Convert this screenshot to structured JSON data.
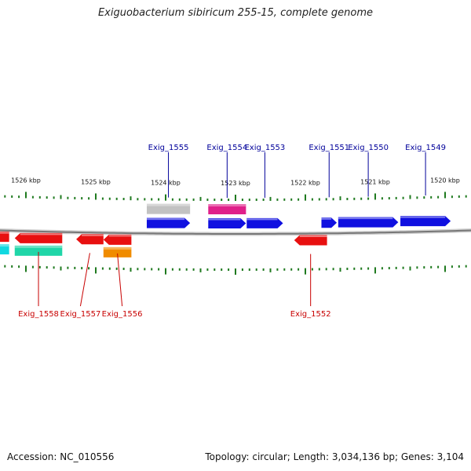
{
  "title": "Exiguobacterium sibiricum 255-15, complete genome",
  "footer": {
    "accession": "Accession: NC_010556",
    "summary": "Topology: circular; Length: 3,034,136 bp; Genes: 3,104"
  },
  "colors": {
    "forward_label": "#00009a",
    "reverse_label": "#c80000",
    "tick": "#1f7a1f",
    "backbone": "#777777"
  },
  "scale": {
    "major_ticks": [
      {
        "kbp": 1526,
        "label": "1526 kbp"
      },
      {
        "kbp": 1525,
        "label": "1525 kbp"
      },
      {
        "kbp": 1524,
        "label": "1524 kbp"
      },
      {
        "kbp": 1523,
        "label": "1523 kbp"
      },
      {
        "kbp": 1522,
        "label": "1522 kbp"
      },
      {
        "kbp": 1521,
        "label": "1521 kbp"
      },
      {
        "kbp": 1520,
        "label": "1520 kbp"
      }
    ]
  },
  "features": [
    {
      "name": "Exig_1555",
      "strand": "+",
      "start_kbp": 1524.27,
      "end_kbp": 1523.65,
      "color": "#1010e0",
      "labeled": true
    },
    {
      "name": "Exig_1554",
      "strand": "+",
      "start_kbp": 1523.39,
      "end_kbp": 1522.85,
      "color": "#1010e0",
      "labeled": true
    },
    {
      "name": "Exig_1553",
      "strand": "+",
      "start_kbp": 1522.84,
      "end_kbp": 1522.32,
      "color": "#1010e0",
      "labeled": true
    },
    {
      "name": "Exig_1551",
      "strand": "+",
      "start_kbp": 1521.77,
      "end_kbp": 1521.55,
      "color": "#1010e0",
      "labeled": true
    },
    {
      "name": "Exig_1550",
      "strand": "+",
      "start_kbp": 1521.53,
      "end_kbp": 1520.67,
      "color": "#1010e0",
      "labeled": true
    },
    {
      "name": "Exig_1549",
      "strand": "+",
      "start_kbp": 1520.64,
      "end_kbp": 1519.92,
      "color": "#1010e0",
      "labeled": true
    },
    {
      "name": "Exig_1558",
      "strand": "-",
      "start_kbp": 1525.48,
      "end_kbp": 1526.16,
      "color": "#e81010",
      "labeled": true
    },
    {
      "name": "Exig_1557",
      "strand": "-",
      "start_kbp": 1524.89,
      "end_kbp": 1525.28,
      "color": "#e81010",
      "labeled": true
    },
    {
      "name": "Exig_1556",
      "strand": "-",
      "start_kbp": 1524.49,
      "end_kbp": 1524.89,
      "color": "#e81010",
      "labeled": true
    },
    {
      "name": "Exig_1552",
      "strand": "-",
      "start_kbp": 1521.69,
      "end_kbp": 1522.16,
      "color": "#e81010",
      "labeled": true
    },
    {
      "name": "Exig_1559",
      "strand": "-",
      "start_kbp": 1526.24,
      "end_kbp": 1526.8,
      "color": "#e81010",
      "labeled": false
    }
  ],
  "rna_features": [
    {
      "name": "rRNA-forward",
      "strand": "+",
      "start_kbp": 1524.27,
      "end_kbp": 1523.65,
      "color": "#c2c2c2"
    },
    {
      "name": "misc-forward",
      "strand": "+",
      "start_kbp": 1523.39,
      "end_kbp": 1522.85,
      "color": "#e0208a"
    },
    {
      "name": "rna-reverse-a",
      "strand": "-",
      "start_kbp": 1525.48,
      "end_kbp": 1526.16,
      "color": "#20d6a8"
    },
    {
      "name": "rna-reverse-b",
      "strand": "-",
      "start_kbp": 1524.49,
      "end_kbp": 1524.89,
      "color": "#f08c00"
    },
    {
      "name": "rna-reverse-c",
      "strand": "-",
      "start_kbp": 1526.24,
      "end_kbp": 1526.8,
      "color": "#10d8e0"
    }
  ]
}
